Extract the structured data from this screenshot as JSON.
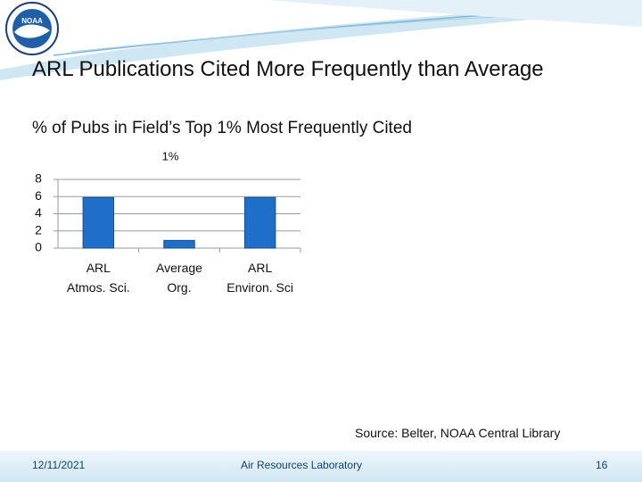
{
  "slide": {
    "title": "ARL Publications Cited More Frequently than Average",
    "subtitle": "% of Pubs in Field’s Top 1% Most Frequently Cited",
    "source": "Source: Belter, NOAA Central Library",
    "date": "12/11/2021",
    "organization": "Air Resources Laboratory",
    "page": "16"
  },
  "chart_data": {
    "type": "bar",
    "title": "1%",
    "categories": [
      "ARL\nAtmos. Sci.",
      "Average\nOrg.",
      "ARL\nEnviron. Sci"
    ],
    "values": [
      5.9,
      0.9,
      5.9
    ],
    "color": "#1f6fc8",
    "ylim": [
      0,
      8
    ],
    "yticks": [
      0,
      2,
      4,
      6,
      8
    ],
    "grid": true
  }
}
